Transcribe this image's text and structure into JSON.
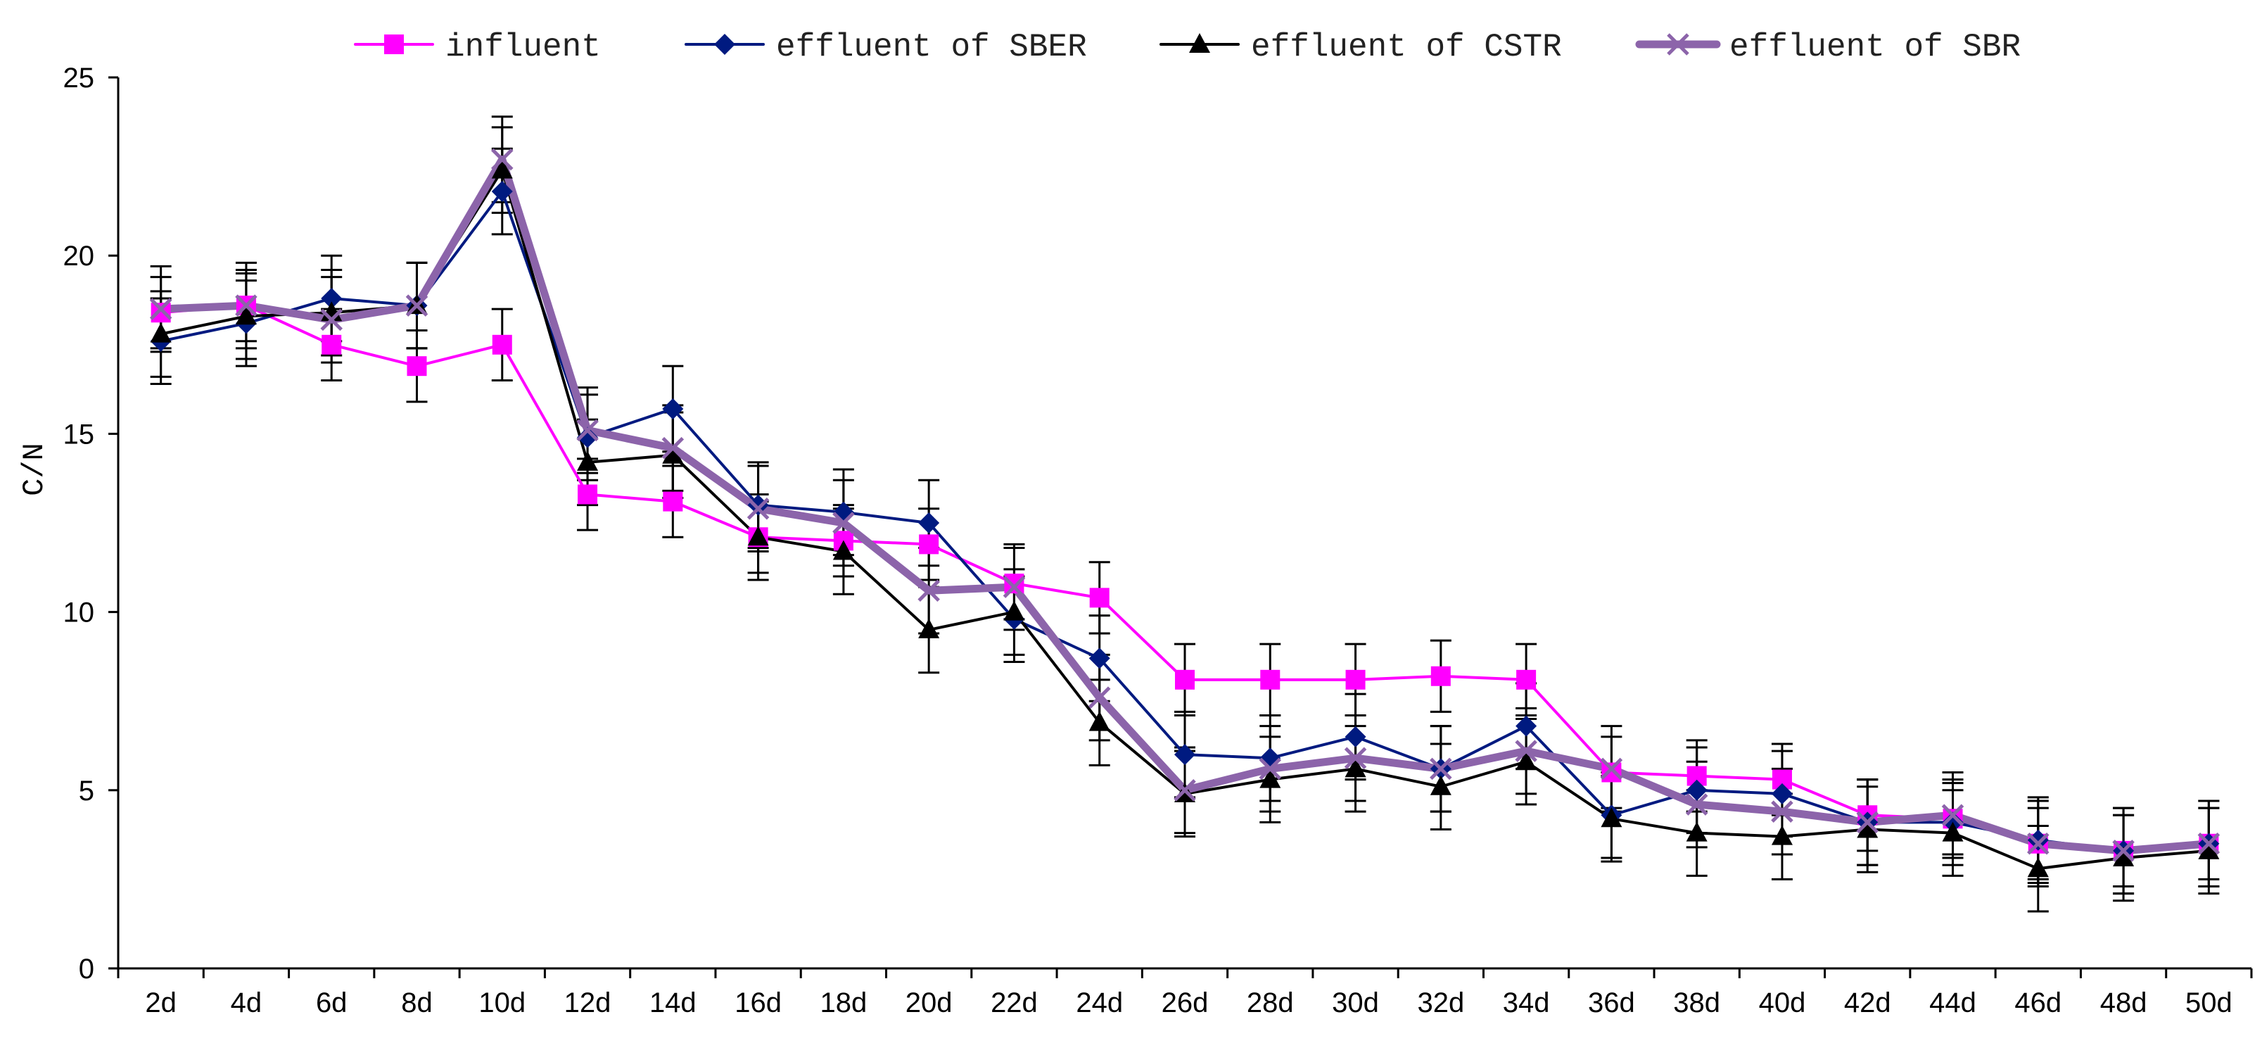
{
  "chart_data": {
    "type": "line",
    "title": "",
    "xlabel": "",
    "ylabel": "C/N",
    "ylim": [
      0,
      25
    ],
    "yticks": [
      0,
      5,
      10,
      15,
      20,
      25
    ],
    "grid": false,
    "legend_position": "top",
    "categories": [
      "2d",
      "4d",
      "6d",
      "8d",
      "10d",
      "12d",
      "14d",
      "16d",
      "18d",
      "20d",
      "22d",
      "24d",
      "26d",
      "28d",
      "30d",
      "32d",
      "34d",
      "36d",
      "38d",
      "40d",
      "42d",
      "44d",
      "46d",
      "48d",
      "50d"
    ],
    "series": [
      {
        "name": "influent",
        "color": "#ff00ff",
        "marker": "square",
        "values": [
          18.4,
          18.6,
          17.5,
          16.9,
          17.5,
          13.3,
          13.1,
          12.1,
          12.0,
          11.9,
          10.8,
          10.4,
          8.1,
          8.1,
          8.1,
          8.2,
          8.1,
          5.5,
          5.4,
          5.3,
          4.3,
          4.2,
          3.5,
          3.3,
          3.5
        ],
        "errors": [
          1.0,
          1.0,
          1.0,
          1.0,
          1.0,
          1.0,
          1.0,
          1.0,
          1.0,
          1.0,
          1.0,
          1.0,
          1.0,
          1.0,
          1.0,
          1.0,
          1.0,
          1.0,
          1.0,
          1.0,
          1.0,
          1.0,
          1.0,
          1.0,
          1.0
        ]
      },
      {
        "name": "effluent of SBER",
        "color": "#001a80",
        "marker": "diamond",
        "values": [
          17.6,
          18.1,
          18.8,
          18.6,
          21.8,
          14.9,
          15.7,
          13.0,
          12.8,
          12.5,
          9.8,
          8.7,
          6.0,
          5.9,
          6.5,
          5.6,
          6.8,
          4.3,
          5.0,
          4.9,
          4.1,
          4.1,
          3.6,
          3.3,
          3.5
        ],
        "errors": [
          1.2,
          1.2,
          1.2,
          1.2,
          1.2,
          1.2,
          1.2,
          1.2,
          1.2,
          1.2,
          1.2,
          1.2,
          1.2,
          1.2,
          1.2,
          1.2,
          1.2,
          1.2,
          1.2,
          1.2,
          1.2,
          1.2,
          1.2,
          1.2,
          1.2
        ]
      },
      {
        "name": "effluent of CSTR",
        "color": "#000000",
        "marker": "triangle",
        "values": [
          17.8,
          18.3,
          18.4,
          18.6,
          22.4,
          14.2,
          14.4,
          12.1,
          11.7,
          9.5,
          10.0,
          6.9,
          4.9,
          5.3,
          5.6,
          5.1,
          5.8,
          4.2,
          3.8,
          3.7,
          3.9,
          3.8,
          2.8,
          3.1,
          3.3
        ],
        "errors": [
          1.2,
          1.2,
          1.2,
          1.2,
          1.2,
          1.2,
          1.2,
          1.2,
          1.2,
          1.2,
          1.2,
          1.2,
          1.2,
          1.2,
          1.2,
          1.2,
          1.2,
          1.2,
          1.2,
          1.2,
          1.2,
          1.2,
          1.2,
          1.2,
          1.2
        ]
      },
      {
        "name": "effluent of SBR",
        "color": "#8c64aa",
        "marker": "x",
        "values": [
          18.5,
          18.6,
          18.2,
          18.6,
          22.7,
          15.1,
          14.6,
          12.9,
          12.5,
          10.6,
          10.7,
          7.6,
          5.0,
          5.6,
          5.9,
          5.6,
          6.1,
          5.6,
          4.6,
          4.4,
          4.1,
          4.3,
          3.5,
          3.3,
          3.5
        ],
        "errors": [
          1.2,
          1.2,
          1.2,
          1.2,
          1.2,
          1.2,
          1.2,
          1.2,
          1.2,
          1.2,
          1.2,
          1.2,
          1.2,
          1.2,
          1.2,
          1.2,
          1.2,
          1.2,
          1.2,
          1.2,
          1.2,
          1.2,
          1.2,
          1.2,
          1.2
        ]
      }
    ]
  }
}
